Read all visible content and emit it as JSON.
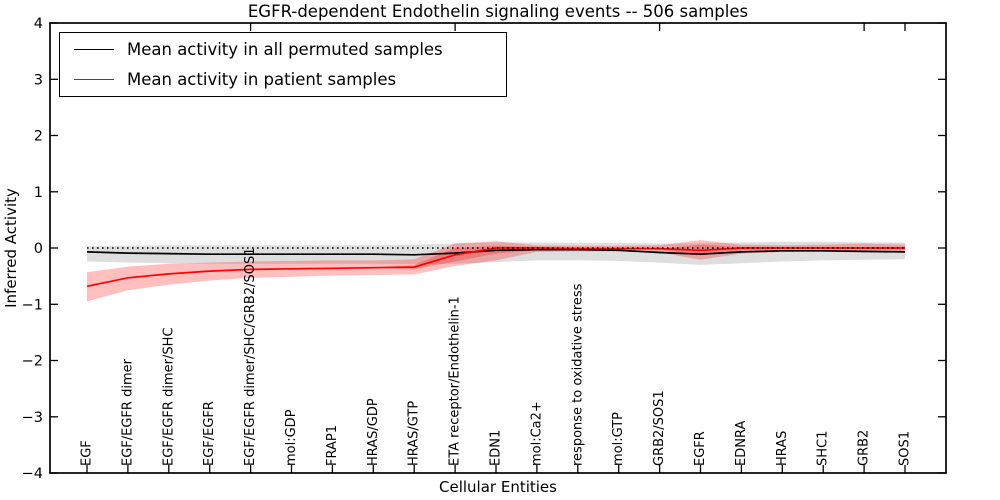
{
  "chart_data": {
    "type": "line",
    "title": "EGFR-dependent Endothelin signaling events -- 506 samples",
    "xlabel": "Cellular Entities",
    "ylabel": "Inferred Activity",
    "ylim": [
      -4,
      4
    ],
    "yticks": [
      4,
      3,
      2,
      1,
      0,
      -1,
      -2,
      -3,
      -4
    ],
    "grid": false,
    "legend_position": "upper left",
    "top_axis_tick_indices": [
      4,
      9,
      14,
      19,
      20
    ],
    "reference_line": {
      "y": 0,
      "style": "dotted",
      "color": "#000000"
    },
    "categories": [
      "EGF",
      "EGF/EGFR dimer",
      "EGF/EGFR dimer/SHC",
      "EGF/EGFR",
      "EGF/EGFR dimer/SHC/GRB2/SOS1",
      "mol:GDP",
      "FRAP1",
      "HRAS/GDP",
      "HRAS/GTP",
      "ETA receptor/Endothelin-1",
      "EDN1",
      "mol:Ca2+",
      "response to oxidative stress",
      "mol:GTP",
      "GRB2/SOS1",
      "EGFR",
      "EDNRA",
      "HRAS",
      "SHC1",
      "GRB2",
      "SOS1"
    ],
    "series": [
      {
        "name": "Mean activity in all permuted samples",
        "color": "#000000",
        "band_color": "#000000",
        "band_opacity": 0.13,
        "values": [
          -0.07,
          -0.09,
          -0.1,
          -0.11,
          -0.11,
          -0.11,
          -0.11,
          -0.11,
          -0.12,
          -0.09,
          -0.04,
          -0.03,
          -0.03,
          -0.04,
          -0.08,
          -0.11,
          -0.07,
          -0.05,
          -0.05,
          -0.06,
          -0.07
        ],
        "band_upper": [
          0.03,
          0.04,
          0.05,
          0.05,
          0.05,
          0.05,
          0.05,
          0.05,
          0.06,
          0.08,
          0.1,
          0.1,
          0.09,
          0.09,
          0.08,
          0.08,
          0.1,
          0.11,
          0.11,
          0.1,
          0.1
        ],
        "band_lower": [
          -0.24,
          -0.26,
          -0.27,
          -0.28,
          -0.28,
          -0.28,
          -0.28,
          -0.28,
          -0.29,
          -0.28,
          -0.25,
          -0.22,
          -0.22,
          -0.23,
          -0.26,
          -0.3,
          -0.27,
          -0.24,
          -0.22,
          -0.21,
          -0.2
        ]
      },
      {
        "name": "Mean activity in patient samples",
        "color": "#ff0000",
        "band_color": "#ff0000",
        "band_opacity": 0.25,
        "values": [
          -0.68,
          -0.53,
          -0.46,
          -0.41,
          -0.38,
          -0.37,
          -0.36,
          -0.35,
          -0.34,
          -0.12,
          0.0,
          0.0,
          -0.01,
          -0.01,
          -0.01,
          -0.04,
          0.0,
          0.0,
          0.0,
          0.0,
          0.0
        ],
        "band_upper": [
          -0.43,
          -0.33,
          -0.28,
          -0.26,
          -0.24,
          -0.23,
          -0.22,
          -0.22,
          -0.2,
          0.08,
          0.12,
          0.05,
          0.04,
          0.04,
          0.05,
          0.14,
          0.06,
          0.05,
          0.06,
          0.08,
          0.06
        ],
        "band_lower": [
          -0.95,
          -0.75,
          -0.65,
          -0.58,
          -0.53,
          -0.51,
          -0.49,
          -0.48,
          -0.47,
          -0.32,
          -0.22,
          -0.07,
          -0.06,
          -0.06,
          -0.08,
          -0.21,
          -0.1,
          -0.07,
          -0.07,
          -0.08,
          -0.08
        ],
        "band_inner_upper": [
          -0.68,
          -0.53,
          -0.46,
          -0.41,
          -0.38,
          -0.37,
          -0.36,
          -0.35,
          -0.3,
          0.0,
          0.04,
          0.02,
          -0.01,
          -0.01,
          -0.01,
          0.06,
          0.02,
          0.0,
          0.0,
          0.0,
          0.02
        ],
        "band_inner_lower": [
          -0.68,
          -0.53,
          -0.46,
          -0.41,
          -0.38,
          -0.37,
          -0.36,
          -0.35,
          -0.38,
          -0.24,
          -0.1,
          -0.04,
          -0.01,
          -0.01,
          -0.03,
          -0.13,
          -0.04,
          -0.02,
          -0.02,
          -0.02,
          -0.03
        ]
      }
    ]
  }
}
